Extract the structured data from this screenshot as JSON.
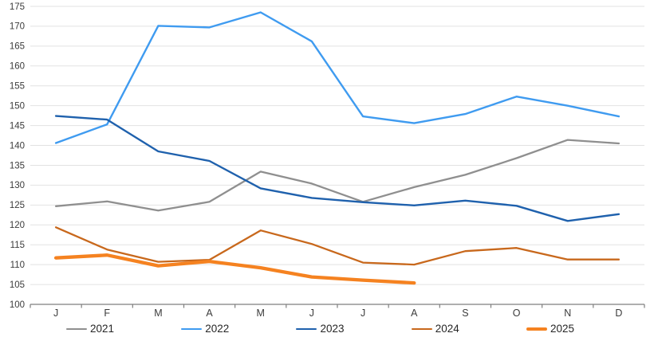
{
  "chart_data": {
    "type": "line",
    "categories": [
      "J",
      "F",
      "M",
      "A",
      "M",
      "J",
      "J",
      "A",
      "S",
      "O",
      "N",
      "D"
    ],
    "series": [
      {
        "name": "2021",
        "color": "#8f8f8f",
        "stroke_width": 2.3,
        "values": [
          124.7,
          125.9,
          123.6,
          125.8,
          133.4,
          130.4,
          125.8,
          129.5,
          132.6,
          136.8,
          141.4,
          140.5
        ]
      },
      {
        "name": "2022",
        "color": "#3f9bf0",
        "stroke_width": 2.4,
        "values": [
          140.6,
          145.3,
          170.1,
          169.7,
          173.5,
          166.2,
          147.3,
          145.6,
          147.9,
          152.3,
          150.0,
          147.3
        ]
      },
      {
        "name": "2023",
        "color": "#1f61ad",
        "stroke_width": 2.4,
        "values": [
          147.4,
          146.5,
          138.5,
          136.1,
          129.2,
          126.8,
          125.7,
          124.9,
          126.1,
          124.8,
          121.0,
          122.7
        ]
      },
      {
        "name": "2024",
        "color": "#c8681c",
        "stroke_width": 2.3,
        "values": [
          119.4,
          113.8,
          110.7,
          111.2,
          118.6,
          115.2,
          110.5,
          110.0,
          113.4,
          114.2,
          111.3,
          111.3
        ]
      },
      {
        "name": "2025",
        "color": "#f58220",
        "stroke_width": 4.3,
        "values": [
          111.7,
          112.4,
          109.7,
          110.8,
          109.2,
          106.9,
          106.1,
          105.4,
          null,
          null,
          null,
          null
        ]
      }
    ],
    "y_ticks": [
      100,
      105,
      110,
      115,
      120,
      125,
      130,
      135,
      140,
      145,
      150,
      155,
      160,
      165,
      170,
      175
    ],
    "ylim": [
      100,
      175
    ],
    "xlabel": "",
    "ylabel": "",
    "grid": "horizontal",
    "legend_position": "bottom"
  },
  "style_colors": {
    "gridline": "#e2e2e2",
    "axis_line": "#7f7f7f",
    "tick_mark": "#7f7f7f",
    "axis_text": "#3b3b3b"
  }
}
